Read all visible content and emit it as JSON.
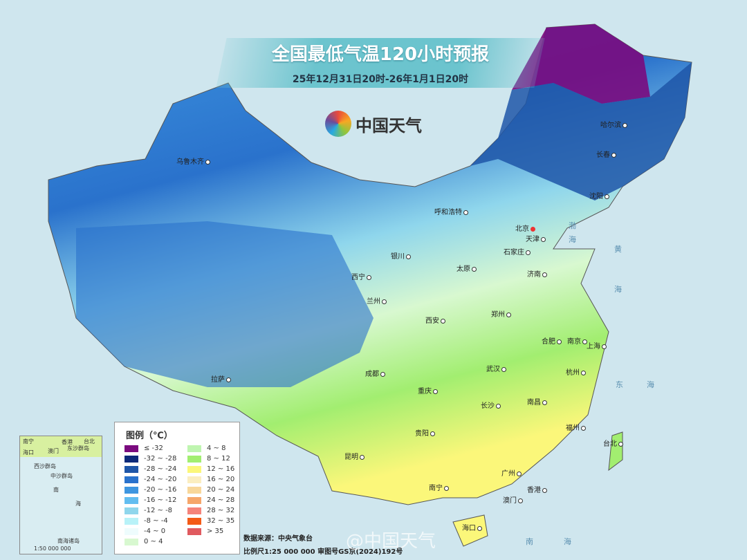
{
  "header": {
    "title": "全国最低气温120小时预报",
    "subtitle": "25年12月31日20时-26年1月1日20时",
    "brand": "中国天气"
  },
  "cities": [
    {
      "name": "乌鲁木齐",
      "capital": false
    },
    {
      "name": "哈尔滨",
      "capital": false
    },
    {
      "name": "长春",
      "capital": false
    },
    {
      "name": "沈阳",
      "capital": false
    },
    {
      "name": "北京",
      "capital": true
    },
    {
      "name": "天津",
      "capital": false
    },
    {
      "name": "呼和浩特",
      "capital": false
    },
    {
      "name": "石家庄",
      "capital": false
    },
    {
      "name": "太原",
      "capital": false
    },
    {
      "name": "济南",
      "capital": false
    },
    {
      "name": "银川",
      "capital": false
    },
    {
      "name": "西宁",
      "capital": false
    },
    {
      "name": "兰州",
      "capital": false
    },
    {
      "name": "西安",
      "capital": false
    },
    {
      "name": "郑州",
      "capital": false
    },
    {
      "name": "合肥",
      "capital": false
    },
    {
      "name": "南京",
      "capital": false
    },
    {
      "name": "上海",
      "capital": false
    },
    {
      "name": "武汉",
      "capital": false
    },
    {
      "name": "杭州",
      "capital": false
    },
    {
      "name": "成都",
      "capital": false
    },
    {
      "name": "重庆",
      "capital": false
    },
    {
      "name": "拉萨",
      "capital": false
    },
    {
      "name": "长沙",
      "capital": false
    },
    {
      "name": "南昌",
      "capital": false
    },
    {
      "name": "福州",
      "capital": false
    },
    {
      "name": "贵阳",
      "capital": false
    },
    {
      "name": "昆明",
      "capital": false
    },
    {
      "name": "台北",
      "capital": false
    },
    {
      "name": "南宁",
      "capital": false
    },
    {
      "name": "广州",
      "capital": false
    },
    {
      "name": "香港",
      "capital": false
    },
    {
      "name": "澳门",
      "capital": false
    },
    {
      "name": "海口",
      "capital": false
    }
  ],
  "seas": [
    "渤",
    "海",
    "黄",
    "海",
    "东",
    "海",
    "南",
    "海"
  ],
  "legend": {
    "title": "图例（℃）",
    "items": [
      {
        "label": "≤ -32",
        "color": "#7a0a7e"
      },
      {
        "label": "-32 ~ -28",
        "color": "#0d2a7a"
      },
      {
        "label": "-28 ~ -24",
        "color": "#1f56a8"
      },
      {
        "label": "-24 ~ -20",
        "color": "#2a72cc"
      },
      {
        "label": "-20 ~ -16",
        "color": "#3e96e0"
      },
      {
        "label": "-16 ~ -12",
        "color": "#62bdf0"
      },
      {
        "label": "-12 ~ -8",
        "color": "#8fd6ec"
      },
      {
        "label": "-8 ~ -4",
        "color": "#b8f2f8"
      },
      {
        "label": "-4 ~ 0",
        "color": "#eefcfd"
      },
      {
        "label": "0 ~ 4",
        "color": "#d8f8d0"
      },
      {
        "label": "4 ~ 8",
        "color": "#bff5b0"
      },
      {
        "label": "8 ~ 12",
        "color": "#a2ee70"
      },
      {
        "label": "12 ~ 16",
        "color": "#fbf77a"
      },
      {
        "label": "16 ~ 20",
        "color": "#fbeec0"
      },
      {
        "label": "20 ~ 24",
        "color": "#f8d79a"
      },
      {
        "label": "24 ~ 28",
        "color": "#f6a66a"
      },
      {
        "label": "28 ~ 32",
        "color": "#f5837a"
      },
      {
        "label": "32 ~ 35",
        "color": "#f45a16"
      },
      {
        "label": "> 35",
        "color": "#e05a5f"
      }
    ]
  },
  "inset": {
    "labels": [
      "南宁",
      "香港",
      "台北",
      "海口",
      "澳门",
      "东沙群岛",
      "西沙群岛",
      "中沙群岛",
      "南",
      "海",
      "南海诸岛"
    ],
    "scale": "1:50 000 000"
  },
  "footer": {
    "source": "数据来源：中央气象台",
    "scale": "比例尺1:25 000 000 审图号GS京(2024)192号",
    "watermark": "@中国天气"
  }
}
